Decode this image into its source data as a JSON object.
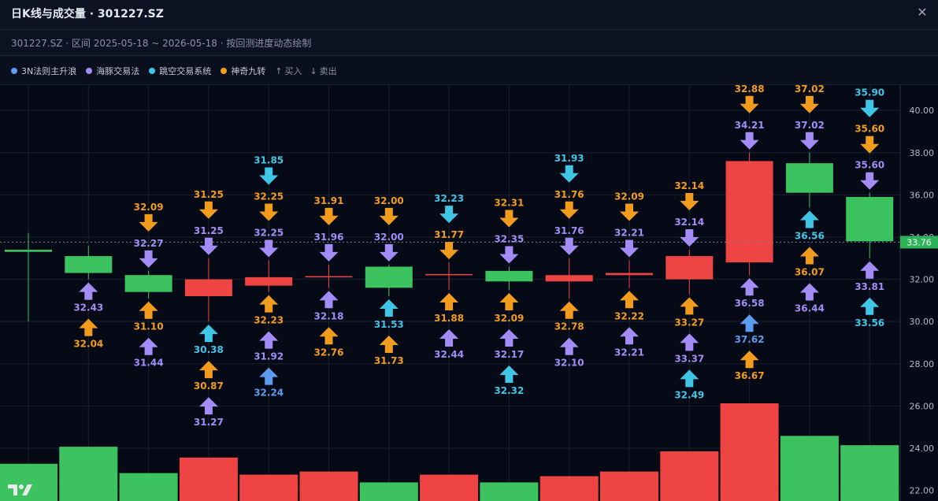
{
  "window": {
    "title": "日K线与成交量 · 301227.SZ",
    "close_icon": "close-icon",
    "close_glyph": "✕",
    "subtitle": "301227.SZ · 区间 2025-05-18 ~ 2026-05-18 · 按回测进度动态绘制"
  },
  "legend": {
    "items": [
      {
        "label": "3N法则主升浪",
        "color": "#5b9cf0"
      },
      {
        "label": "海豚交易法",
        "color": "#a48cf6"
      },
      {
        "label": "跳空交易系统",
        "color": "#3fc6e6"
      },
      {
        "label": "神奇九转",
        "color": "#f29c1e"
      }
    ],
    "buy": {
      "glyph": "↑",
      "label": "买入",
      "icon": "arrow-up-icon"
    },
    "sell": {
      "glyph": "↓",
      "label": "卖出",
      "icon": "arrow-down-icon"
    }
  },
  "colors": {
    "up": "#ef4444",
    "down": "#3cc35f",
    "grid": "#182030",
    "axis_text": "#b2b8c5",
    "price_line": "#7d8597",
    "price_label_bg": "#2fb35a"
  },
  "chart_data": {
    "type": "candlestick",
    "y_axis": {
      "ticks": [
        "22.00",
        "24.00",
        "26.00",
        "28.00",
        "30.00",
        "32.00",
        "34.00",
        "36.00",
        "38.00",
        "40.00"
      ],
      "range": [
        21.5,
        41.2
      ]
    },
    "current_price": "33.76",
    "candles": [
      {
        "open": 33.4,
        "close": 33.3,
        "high": 34.2,
        "low": 30.0,
        "volume": 0.24
      },
      {
        "open": 33.1,
        "close": 32.3,
        "high": 33.6,
        "low": 32.0,
        "volume": 0.35
      },
      {
        "open": 32.2,
        "close": 31.4,
        "high": 32.4,
        "low": 31.1,
        "volume": 0.18
      },
      {
        "open": 31.2,
        "close": 32.0,
        "high": 33.0,
        "low": 30.0,
        "volume": 0.28
      },
      {
        "open": 31.7,
        "close": 32.1,
        "high": 32.9,
        "low": 31.4,
        "volume": 0.17
      },
      {
        "open": 32.1,
        "close": 32.15,
        "high": 32.7,
        "low": 31.6,
        "volume": 0.19
      },
      {
        "open": 32.6,
        "close": 31.6,
        "high": 32.7,
        "low": 31.2,
        "volume": 0.12
      },
      {
        "open": 32.2,
        "close": 32.25,
        "high": 32.8,
        "low": 31.5,
        "volume": 0.17
      },
      {
        "open": 32.4,
        "close": 31.9,
        "high": 32.6,
        "low": 31.5,
        "volume": 0.12
      },
      {
        "open": 31.9,
        "close": 32.2,
        "high": 33.0,
        "low": 31.1,
        "volume": 0.16
      },
      {
        "open": 32.2,
        "close": 32.3,
        "high": 32.9,
        "low": 31.6,
        "volume": 0.19
      },
      {
        "open": 32.0,
        "close": 33.1,
        "high": 33.4,
        "low": 31.3,
        "volume": 0.32
      },
      {
        "open": 32.8,
        "close": 37.6,
        "high": 38.0,
        "low": 32.2,
        "volume": 0.63
      },
      {
        "open": 37.5,
        "close": 36.1,
        "high": 38.0,
        "low": 35.4,
        "volume": 0.42
      },
      {
        "open": 35.9,
        "close": 33.8,
        "high": 36.1,
        "low": 33.0,
        "volume": 0.36
      }
    ],
    "signals": [
      {
        "c": 1,
        "dir": "up",
        "color": "#a48cf6",
        "label": "32.43",
        "slot": 0
      },
      {
        "c": 1,
        "dir": "up",
        "color": "#f29c1e",
        "label": "32.04",
        "slot": 1
      },
      {
        "c": 2,
        "dir": "down",
        "color": "#f29c1e",
        "label": "32.09",
        "slot": 1
      },
      {
        "c": 2,
        "dir": "down",
        "color": "#a48cf6",
        "label": "32.27",
        "slot": 0
      },
      {
        "c": 2,
        "dir": "up",
        "color": "#f29c1e",
        "label": "31.10",
        "slot": 0
      },
      {
        "c": 2,
        "dir": "up",
        "color": "#a48cf6",
        "label": "31.44",
        "slot": 1
      },
      {
        "c": 3,
        "dir": "down",
        "color": "#f29c1e",
        "label": "31.25",
        "slot": 1
      },
      {
        "c": 3,
        "dir": "down",
        "color": "#a48cf6",
        "label": "31.25",
        "slot": 0
      },
      {
        "c": 3,
        "dir": "up",
        "color": "#3fc6e6",
        "label": "30.38",
        "slot": 0
      },
      {
        "c": 3,
        "dir": "up",
        "color": "#f29c1e",
        "label": "30.87",
        "slot": 1
      },
      {
        "c": 3,
        "dir": "up",
        "color": "#a48cf6",
        "label": "31.27",
        "slot": 2
      },
      {
        "c": 4,
        "dir": "down",
        "color": "#3fc6e6",
        "label": "31.85",
        "slot": 2
      },
      {
        "c": 4,
        "dir": "down",
        "color": "#f29c1e",
        "label": "32.25",
        "slot": 1
      },
      {
        "c": 4,
        "dir": "down",
        "color": "#a48cf6",
        "label": "32.25",
        "slot": 0
      },
      {
        "c": 4,
        "dir": "up",
        "color": "#f29c1e",
        "label": "32.23",
        "slot": 0
      },
      {
        "c": 4,
        "dir": "up",
        "color": "#a48cf6",
        "label": "31.92",
        "slot": 1
      },
      {
        "c": 4,
        "dir": "up",
        "color": "#5b9cf0",
        "label": "32.24",
        "slot": 2
      },
      {
        "c": 5,
        "dir": "down",
        "color": "#f29c1e",
        "label": "31.91",
        "slot": 1
      },
      {
        "c": 5,
        "dir": "down",
        "color": "#a48cf6",
        "label": "31.96",
        "slot": 0
      },
      {
        "c": 5,
        "dir": "up",
        "color": "#a48cf6",
        "label": "32.18",
        "slot": 0
      },
      {
        "c": 5,
        "dir": "up",
        "color": "#f29c1e",
        "label": "32.76",
        "slot": 1
      },
      {
        "c": 6,
        "dir": "down",
        "color": "#f29c1e",
        "label": "32.00",
        "slot": 1
      },
      {
        "c": 6,
        "dir": "down",
        "color": "#a48cf6",
        "label": "32.00",
        "slot": 0
      },
      {
        "c": 6,
        "dir": "up",
        "color": "#3fc6e6",
        "label": "31.53",
        "slot": 0
      },
      {
        "c": 6,
        "dir": "up",
        "color": "#f29c1e",
        "label": "31.73",
        "slot": 1
      },
      {
        "c": 7,
        "dir": "down",
        "color": "#3fc6e6",
        "label": "32.23",
        "slot": 1
      },
      {
        "c": 7,
        "dir": "down",
        "color": "#f29c1e",
        "label": "31.77",
        "slot": 0
      },
      {
        "c": 7,
        "dir": "up",
        "color": "#f29c1e",
        "label": "31.88",
        "slot": 0
      },
      {
        "c": 7,
        "dir": "up",
        "color": "#a48cf6",
        "label": "32.44",
        "slot": 1
      },
      {
        "c": 8,
        "dir": "down",
        "color": "#f29c1e",
        "label": "32.31",
        "slot": 1
      },
      {
        "c": 8,
        "dir": "down",
        "color": "#a48cf6",
        "label": "32.35",
        "slot": 0
      },
      {
        "c": 8,
        "dir": "up",
        "color": "#f29c1e",
        "label": "32.09",
        "slot": 0
      },
      {
        "c": 8,
        "dir": "up",
        "color": "#a48cf6",
        "label": "32.17",
        "slot": 1
      },
      {
        "c": 8,
        "dir": "up",
        "color": "#3fc6e6",
        "label": "32.32",
        "slot": 2
      },
      {
        "c": 9,
        "dir": "down",
        "color": "#3fc6e6",
        "label": "31.93",
        "slot": 2
      },
      {
        "c": 9,
        "dir": "down",
        "color": "#f29c1e",
        "label": "31.76",
        "slot": 1
      },
      {
        "c": 9,
        "dir": "down",
        "color": "#a48cf6",
        "label": "31.76",
        "slot": 0
      },
      {
        "c": 9,
        "dir": "up",
        "color": "#f29c1e",
        "label": "32.78",
        "slot": 0
      },
      {
        "c": 9,
        "dir": "up",
        "color": "#a48cf6",
        "label": "32.10",
        "slot": 1
      },
      {
        "c": 10,
        "dir": "down",
        "color": "#f29c1e",
        "label": "32.09",
        "slot": 1
      },
      {
        "c": 10,
        "dir": "down",
        "color": "#a48cf6",
        "label": "32.21",
        "slot": 0
      },
      {
        "c": 10,
        "dir": "up",
        "color": "#f29c1e",
        "label": "32.22",
        "slot": 0
      },
      {
        "c": 10,
        "dir": "up",
        "color": "#a48cf6",
        "label": "32.21",
        "slot": 1
      },
      {
        "c": 11,
        "dir": "down",
        "color": "#f29c1e",
        "label": "32.14",
        "slot": 1
      },
      {
        "c": 11,
        "dir": "down",
        "color": "#a48cf6",
        "label": "32.14",
        "slot": 0
      },
      {
        "c": 11,
        "dir": "up",
        "color": "#f29c1e",
        "label": "33.27",
        "slot": 0
      },
      {
        "c": 11,
        "dir": "up",
        "color": "#a48cf6",
        "label": "33.37",
        "slot": 1
      },
      {
        "c": 11,
        "dir": "up",
        "color": "#3fc6e6",
        "label": "32.49",
        "slot": 2
      },
      {
        "c": 12,
        "dir": "down",
        "color": "#f29c1e",
        "label": "32.88",
        "slot": 1
      },
      {
        "c": 12,
        "dir": "down",
        "color": "#a48cf6",
        "label": "34.21",
        "slot": 0
      },
      {
        "c": 12,
        "dir": "up",
        "color": "#a48cf6",
        "label": "36.58",
        "slot": 0
      },
      {
        "c": 12,
        "dir": "up",
        "color": "#5b9cf0",
        "label": "37.62",
        "slot": 1
      },
      {
        "c": 12,
        "dir": "up",
        "color": "#f29c1e",
        "label": "36.67",
        "slot": 2
      },
      {
        "c": 13,
        "dir": "down",
        "color": "#5b9cf0",
        "label": "",
        "slot": 2
      },
      {
        "c": 13,
        "dir": "down",
        "color": "#f29c1e",
        "label": "37.02",
        "slot": 1
      },
      {
        "c": 13,
        "dir": "down",
        "color": "#a48cf6",
        "label": "37.02",
        "slot": 0
      },
      {
        "c": 13,
        "dir": "up",
        "color": "#3fc6e6",
        "label": "36.56",
        "slot": 0
      },
      {
        "c": 13,
        "dir": "up",
        "color": "#f29c1e",
        "label": "36.07",
        "slot": 1
      },
      {
        "c": 13,
        "dir": "up",
        "color": "#a48cf6",
        "label": "36.44",
        "slot": 2
      },
      {
        "c": 14,
        "dir": "down",
        "color": "#3fc6e6",
        "label": "35.90",
        "slot": 2
      },
      {
        "c": 14,
        "dir": "down",
        "color": "#f29c1e",
        "label": "35.60",
        "slot": 1
      },
      {
        "c": 14,
        "dir": "down",
        "color": "#a48cf6",
        "label": "35.60",
        "slot": 0
      },
      {
        "c": 14,
        "dir": "up",
        "color": "#a48cf6",
        "label": "33.81",
        "slot": 0
      },
      {
        "c": 14,
        "dir": "up",
        "color": "#3fc6e6",
        "label": "33.56",
        "slot": 1
      }
    ]
  }
}
